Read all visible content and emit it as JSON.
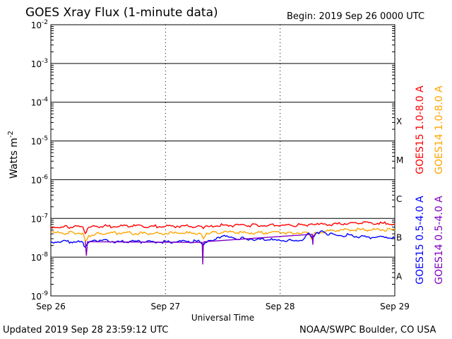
{
  "header": {
    "title": "GOES Xray Flux (1-minute data)",
    "begin": "Begin:  2019 Sep 26 0000 UTC"
  },
  "footer": {
    "updated": "Updated 2019 Sep 28 23:59:12 UTC",
    "credit": "NOAA/SWPC Boulder, CO USA"
  },
  "chart_data": {
    "type": "line",
    "title": "GOES Xray Flux (1-minute data)",
    "xlabel": "Universal Time",
    "ylabel": "Watts m",
    "ylabel_sup": "-2",
    "yscale": "log",
    "ylim": [
      1e-09,
      0.01
    ],
    "xlim": [
      0,
      3
    ],
    "x_unit": "days since Sep 26 0000 UTC",
    "x_ticks": [
      {
        "x": 0,
        "label": "Sep 26"
      },
      {
        "x": 1,
        "label": "Sep 27"
      },
      {
        "x": 2,
        "label": "Sep 28"
      },
      {
        "x": 3,
        "label": "Sep 29"
      }
    ],
    "y_ticks": [
      {
        "exp": -2,
        "base": "10",
        "sup": "-2"
      },
      {
        "exp": -3,
        "base": "10",
        "sup": "-3"
      },
      {
        "exp": -4,
        "base": "10",
        "sup": "-4"
      },
      {
        "exp": -5,
        "base": "10",
        "sup": "-5"
      },
      {
        "exp": -6,
        "base": "10",
        "sup": "-6"
      },
      {
        "exp": -7,
        "base": "10",
        "sup": "-7"
      },
      {
        "exp": -8,
        "base": "10",
        "sup": "-8"
      },
      {
        "exp": -9,
        "base": "10",
        "sup": "-9"
      }
    ],
    "flare_classes": [
      {
        "label": "X",
        "exp": -4
      },
      {
        "label": "M",
        "exp": -5
      },
      {
        "label": "C",
        "exp": -6
      },
      {
        "label": "B",
        "exp": -7
      },
      {
        "label": "A",
        "exp": -8
      }
    ],
    "grid": true,
    "legend_placement": "right (rotated)",
    "series": [
      {
        "name": "GOES15 1.0-8.0 A",
        "color": "#ff0000",
        "x": [
          0,
          0.1,
          0.2,
          0.28,
          0.3,
          0.32,
          0.35,
          0.4,
          0.5,
          0.6,
          0.7,
          0.8,
          0.9,
          1.0,
          1.1,
          1.2,
          1.3,
          1.33,
          1.36,
          1.4,
          1.5,
          1.6,
          1.7,
          1.8,
          1.9,
          2.0,
          2.1,
          2.2,
          2.25,
          2.3,
          2.4,
          2.5,
          2.6,
          2.7,
          2.8,
          2.9,
          3.0
        ],
        "y": [
          6.1e-08,
          6e-08,
          6.1e-08,
          6e-08,
          4.1e-08,
          5.5e-08,
          6e-08,
          6.3e-08,
          6.3e-08,
          6.3e-08,
          6.3e-08,
          6.3e-08,
          6.3e-08,
          6.3e-08,
          6.3e-08,
          6.3e-08,
          6.3e-08,
          5.5e-08,
          6.5e-08,
          6.6e-08,
          6.7e-08,
          6.6e-08,
          6.6e-08,
          6.7e-08,
          6.6e-08,
          6.6e-08,
          6.6e-08,
          6.8e-08,
          7e-08,
          6.9e-08,
          7e-08,
          7.2e-08,
          7.5e-08,
          7.5e-08,
          7.6e-08,
          7.5e-08,
          7.4e-08
        ]
      },
      {
        "name": "GOES14 1.0-8.0 A",
        "color": "#ffa500",
        "x": [
          0,
          0.1,
          0.2,
          0.28,
          0.3,
          0.33,
          0.4,
          0.5,
          0.6,
          0.7,
          0.8,
          0.9,
          1.0,
          1.1,
          1.2,
          1.3,
          1.33,
          1.36,
          1.4,
          1.5,
          1.6,
          1.7,
          1.8,
          1.9,
          2.0,
          2.1,
          2.2,
          2.25,
          2.28,
          2.3,
          2.4,
          2.5,
          2.6,
          2.7,
          2.8,
          2.9,
          3.0
        ],
        "y": [
          4.3e-08,
          4.2e-08,
          4.3e-08,
          4.2e-08,
          2.6e-08,
          3.6e-08,
          4.2e-08,
          4.2e-08,
          4.2e-08,
          4.2e-08,
          4.1e-08,
          4.1e-08,
          4.1e-08,
          4.2e-08,
          4.2e-08,
          4.2e-08,
          3e-08,
          4.2e-08,
          4.3e-08,
          4.3e-08,
          4.3e-08,
          4.3e-08,
          4.3e-08,
          4.3e-08,
          4.3e-08,
          4.3e-08,
          4.4e-08,
          4.2e-08,
          2.8e-08,
          4.3e-08,
          4.6e-08,
          4.9e-08,
          5.1e-08,
          5.1e-08,
          5e-08,
          5.1e-08,
          5e-08
        ]
      },
      {
        "name": "GOES15 0.5-4.0 A",
        "color": "#0000ff",
        "x": [
          0,
          0.1,
          0.2,
          0.28,
          0.3,
          0.33,
          0.4,
          0.5,
          0.6,
          0.7,
          0.8,
          0.9,
          1.0,
          1.1,
          1.2,
          1.3,
          1.33,
          1.36,
          1.4,
          1.45,
          1.5,
          1.55,
          1.6,
          1.7,
          1.8,
          1.9,
          2.0,
          2.1,
          2.2,
          2.25,
          2.28,
          2.3,
          2.35,
          2.4,
          2.5,
          2.6,
          2.7,
          2.8,
          2.9,
          3.0
        ],
        "y": [
          2.5e-08,
          2.6e-08,
          2.5e-08,
          2.4e-08,
          1.8e-08,
          2.4e-08,
          2.6e-08,
          2.6e-08,
          2.5e-08,
          2.6e-08,
          2.5e-08,
          2.5e-08,
          2.5e-08,
          2.5e-08,
          2.6e-08,
          2.5e-08,
          2e-08,
          2.4e-08,
          2.7e-08,
          3.2e-08,
          3.5e-08,
          3.3e-08,
          3.1e-08,
          3e-08,
          2.9e-08,
          2.8e-08,
          2.7e-08,
          2.7e-08,
          2.8e-08,
          4.2e-08,
          3.1e-08,
          3.6e-08,
          4.6e-08,
          4.1e-08,
          3.6e-08,
          3.8e-08,
          3.4e-08,
          3.2e-08,
          3.4e-08,
          3.1e-08
        ]
      },
      {
        "name": "GOES14 0.5-4.0 A",
        "color": "#8000c0",
        "x": [
          0.3,
          0.31,
          0.32,
          1.32,
          1.325,
          1.33,
          1.335,
          2.28,
          2.285,
          2.29
        ],
        "y": [
          2.6e-08,
          1.1e-08,
          2.5e-08,
          2.4e-08,
          6.5e-09,
          2.2e-08,
          2.5e-08,
          3.9e-08,
          2.1e-08,
          3.7e-08
        ]
      }
    ]
  }
}
